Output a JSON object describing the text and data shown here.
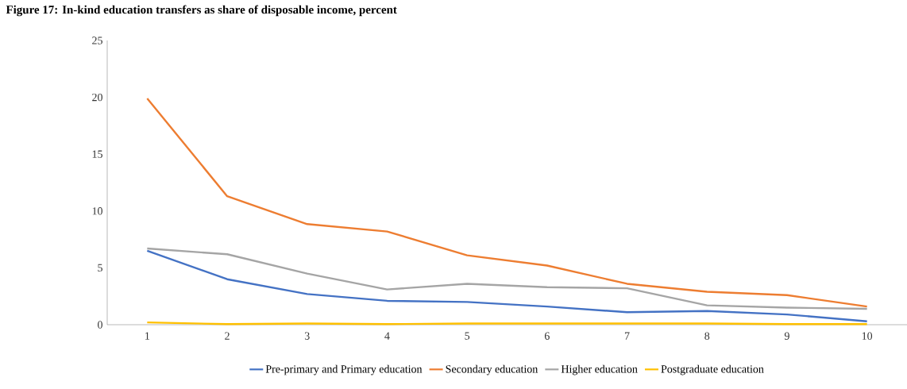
{
  "chart_data": {
    "type": "line",
    "title": "Figure 17: In-kind education transfers as share of disposable income, percent",
    "categories": [
      "1",
      "2",
      "3",
      "4",
      "5",
      "6",
      "7",
      "8",
      "9",
      "10"
    ],
    "series": [
      {
        "name": "Pre-primary and Primary education",
        "color": "#4472c4",
        "values": [
          6.5,
          4.0,
          2.7,
          2.1,
          2.0,
          1.6,
          1.1,
          1.2,
          0.9,
          0.3
        ]
      },
      {
        "name": "Secondary education",
        "color": "#ed7d31",
        "values": [
          19.9,
          11.3,
          8.85,
          8.2,
          6.1,
          5.2,
          3.6,
          2.9,
          2.6,
          1.6
        ]
      },
      {
        "name": "Higher education",
        "color": "#a5a5a5",
        "values": [
          6.7,
          6.2,
          4.5,
          3.1,
          3.6,
          3.3,
          3.2,
          1.7,
          1.5,
          1.4
        ]
      },
      {
        "name": "Postgraduate education",
        "color": "#ffc000",
        "values": [
          0.2,
          0.05,
          0.1,
          0.05,
          0.1,
          0.1,
          0.1,
          0.1,
          0.05,
          0.05
        ]
      }
    ],
    "ylim": [
      0,
      25
    ],
    "yticks": [
      0,
      5,
      10,
      15,
      20,
      25
    ],
    "grid": false,
    "legend": "bottom",
    "marker": "none",
    "line_style": "solid"
  }
}
